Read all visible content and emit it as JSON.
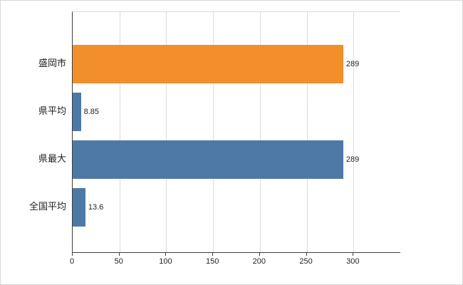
{
  "chart_data": {
    "type": "bar",
    "orientation": "horizontal",
    "title": "",
    "xlabel": "",
    "ylabel": "",
    "legend": "none",
    "grid": true,
    "categories": [
      "盛岡市",
      "県平均",
      "県最大",
      "全国平均"
    ],
    "values": [
      289,
      8.85,
      289,
      13.6
    ],
    "value_labels": [
      "289",
      "8.85",
      "289",
      "13.6"
    ],
    "bar_colors": [
      "#F28E2B",
      "#4E79A7",
      "#4E79A7",
      "#4E79A7"
    ],
    "xlim": [
      0,
      350
    ],
    "x_ticks": [
      0,
      50,
      100,
      150,
      200,
      250,
      300
    ]
  },
  "colors": {
    "grid": "#dcdcdc",
    "axis": "#3f3f3f",
    "text": "#1f1f1f",
    "background": "#ffffff"
  }
}
